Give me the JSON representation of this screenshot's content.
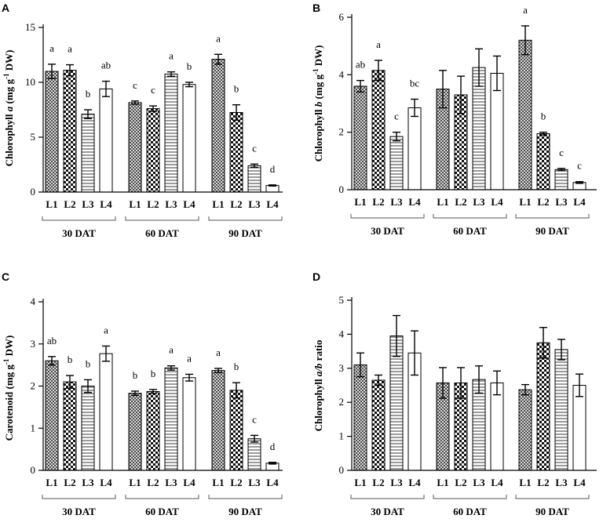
{
  "figure": {
    "panel_letters": [
      "A",
      "B",
      "C",
      "D"
    ],
    "colors": {
      "axis": "#000000",
      "bar_fill": "#ffffff",
      "bracket": "#555555"
    }
  },
  "chart_data": [
    {
      "panel": "A",
      "type": "bar",
      "ylabel_parts": [
        {
          "t": "Chlorophyll ",
          "i": false,
          "sup": false
        },
        {
          "t": "a",
          "i": true,
          "sup": false
        },
        {
          "t": " (mg g",
          "i": false,
          "sup": false
        },
        {
          "t": "-1",
          "i": false,
          "sup": true
        },
        {
          "t": " DW)",
          "i": false,
          "sup": false
        }
      ],
      "ylim": [
        0,
        15
      ],
      "yticks": [
        0,
        5,
        10,
        15
      ],
      "groups": [
        "30 DAT",
        "60 DAT",
        "90 DAT"
      ],
      "categories": [
        "L1",
        "L2",
        "L3",
        "L4"
      ],
      "patterns": [
        "cross",
        "checker",
        "hlines",
        "plain"
      ],
      "series": [
        {
          "group": "30 DAT",
          "values": [
            11.0,
            11.1,
            7.1,
            9.4
          ],
          "errors": [
            0.65,
            0.5,
            0.4,
            0.7
          ],
          "letters": [
            "a",
            "a",
            "b",
            "ab"
          ]
        },
        {
          "group": "60 DAT",
          "values": [
            8.15,
            7.6,
            10.75,
            9.8
          ],
          "errors": [
            0.15,
            0.25,
            0.2,
            0.2
          ],
          "letters": [
            "c",
            "c",
            "a",
            "b"
          ]
        },
        {
          "group": "90 DAT",
          "values": [
            12.1,
            7.25,
            2.4,
            0.6
          ],
          "errors": [
            0.45,
            0.7,
            0.15,
            0.05
          ],
          "letters": [
            "a",
            "b",
            "c",
            "d"
          ]
        }
      ]
    },
    {
      "panel": "B",
      "type": "bar",
      "ylabel_parts": [
        {
          "t": "Chlorophyll ",
          "i": false,
          "sup": false
        },
        {
          "t": "b",
          "i": true,
          "sup": false
        },
        {
          "t": " (mg g",
          "i": false,
          "sup": false
        },
        {
          "t": "-1",
          "i": false,
          "sup": true
        },
        {
          "t": " DW)",
          "i": false,
          "sup": false
        }
      ],
      "ylim": [
        0,
        6
      ],
      "yticks": [
        0,
        2,
        4,
        6
      ],
      "groups": [
        "30 DAT",
        "60 DAT",
        "90 DAT"
      ],
      "categories": [
        "L1",
        "L2",
        "L3",
        "L4"
      ],
      "patterns": [
        "cross",
        "checker",
        "hlines",
        "plain"
      ],
      "series": [
        {
          "group": "30 DAT",
          "values": [
            3.6,
            4.15,
            1.85,
            2.85
          ],
          "errors": [
            0.2,
            0.35,
            0.15,
            0.3
          ],
          "letters": [
            "ab",
            "a",
            "c",
            "bc"
          ]
        },
        {
          "group": "60 DAT",
          "values": [
            3.5,
            3.3,
            4.25,
            4.05
          ],
          "errors": [
            0.65,
            0.65,
            0.65,
            0.6
          ],
          "letters": [
            "",
            "",
            "",
            ""
          ]
        },
        {
          "group": "90 DAT",
          "values": [
            5.2,
            1.95,
            0.7,
            0.25
          ],
          "errors": [
            0.5,
            0.05,
            0.04,
            0.03
          ],
          "letters": [
            "a",
            "b",
            "c",
            "c"
          ]
        }
      ]
    },
    {
      "panel": "C",
      "type": "bar",
      "ylabel_parts": [
        {
          "t": "Carotenoid (mg g",
          "i": false,
          "sup": false
        },
        {
          "t": "-1",
          "i": false,
          "sup": true
        },
        {
          "t": " DW)",
          "i": false,
          "sup": false
        }
      ],
      "ylim": [
        0,
        4
      ],
      "yticks": [
        0,
        1,
        2,
        3,
        4
      ],
      "groups": [
        "30 DAT",
        "60 DAT",
        "90 DAT"
      ],
      "categories": [
        "L1",
        "L2",
        "L3",
        "L4"
      ],
      "patterns": [
        "cross",
        "checker",
        "hlines",
        "plain"
      ],
      "series": [
        {
          "group": "30 DAT",
          "values": [
            2.6,
            2.1,
            2.0,
            2.77
          ],
          "errors": [
            0.1,
            0.15,
            0.15,
            0.18
          ],
          "letters": [
            "ab",
            "b",
            "b",
            "a"
          ]
        },
        {
          "group": "60 DAT",
          "values": [
            1.83,
            1.87,
            2.43,
            2.2
          ],
          "errors": [
            0.05,
            0.05,
            0.05,
            0.08
          ],
          "letters": [
            "b",
            "b",
            "a",
            "a"
          ]
        },
        {
          "group": "90 DAT",
          "values": [
            2.37,
            1.9,
            0.75,
            0.17
          ],
          "errors": [
            0.05,
            0.18,
            0.08,
            0.02
          ],
          "letters": [
            "a",
            "b",
            "c",
            "d"
          ]
        }
      ]
    },
    {
      "panel": "D",
      "type": "bar",
      "ylabel_parts": [
        {
          "t": "Chlorophyll ",
          "i": false,
          "sup": false
        },
        {
          "t": "a/b",
          "i": true,
          "sup": false
        },
        {
          "t": " ratio",
          "i": false,
          "sup": false
        }
      ],
      "ylim": [
        0,
        5
      ],
      "yticks": [
        0,
        1,
        2,
        3,
        4,
        5
      ],
      "groups": [
        "30 DAT",
        "60 DAT",
        "90 DAT"
      ],
      "categories": [
        "L1",
        "L2",
        "L3",
        "L4"
      ],
      "patterns": [
        "cross",
        "checker",
        "hlines",
        "plain"
      ],
      "series": [
        {
          "group": "30 DAT",
          "values": [
            3.1,
            2.65,
            3.95,
            3.45
          ],
          "errors": [
            0.35,
            0.15,
            0.6,
            0.65
          ],
          "letters": [
            "",
            "",
            "",
            ""
          ]
        },
        {
          "group": "60 DAT",
          "values": [
            2.57,
            2.57,
            2.67,
            2.57
          ],
          "errors": [
            0.45,
            0.45,
            0.4,
            0.35
          ],
          "letters": [
            "",
            "",
            "",
            ""
          ]
        },
        {
          "group": "90 DAT",
          "values": [
            2.37,
            3.75,
            3.55,
            2.5
          ],
          "errors": [
            0.15,
            0.45,
            0.3,
            0.33
          ],
          "letters": [
            "",
            "",
            "",
            ""
          ]
        }
      ]
    }
  ]
}
